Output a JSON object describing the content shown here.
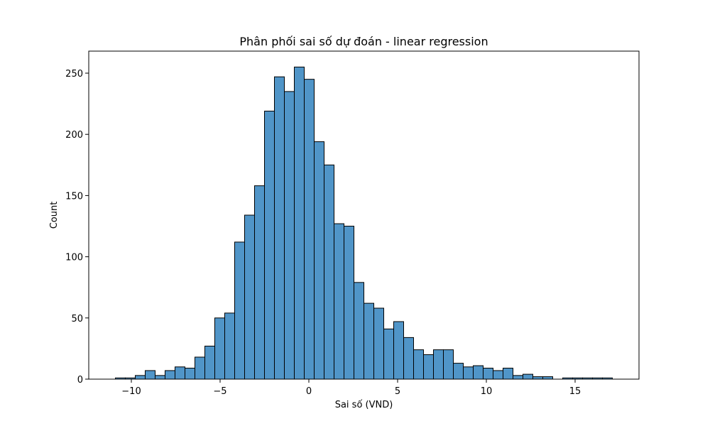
{
  "chart_data": {
    "type": "bar",
    "title": "Phân phối sai số dự đoán - linear regression",
    "xlabel": "Sai số (VND)",
    "ylabel": "Count",
    "xlim": [
      -12.4,
      18.6
    ],
    "ylim": [
      0,
      268
    ],
    "bar_color": "#5095c8",
    "edge_color": "#000000",
    "bin_width": 0.56,
    "bins": [
      {
        "x0": -10.9,
        "count": 1
      },
      {
        "x0": -10.34,
        "count": 1
      },
      {
        "x0": -9.78,
        "count": 3
      },
      {
        "x0": -9.22,
        "count": 7
      },
      {
        "x0": -8.66,
        "count": 3
      },
      {
        "x0": -8.1,
        "count": 7
      },
      {
        "x0": -7.54,
        "count": 10
      },
      {
        "x0": -6.98,
        "count": 9
      },
      {
        "x0": -6.42,
        "count": 18
      },
      {
        "x0": -5.86,
        "count": 27
      },
      {
        "x0": -5.3,
        "count": 50
      },
      {
        "x0": -4.74,
        "count": 54
      },
      {
        "x0": -4.18,
        "count": 112
      },
      {
        "x0": -3.62,
        "count": 134
      },
      {
        "x0": -3.06,
        "count": 158
      },
      {
        "x0": -2.5,
        "count": 219
      },
      {
        "x0": -1.94,
        "count": 247
      },
      {
        "x0": -1.38,
        "count": 235
      },
      {
        "x0": -0.82,
        "count": 255
      },
      {
        "x0": -0.26,
        "count": 245
      },
      {
        "x0": 0.3,
        "count": 194
      },
      {
        "x0": 0.86,
        "count": 175
      },
      {
        "x0": 1.42,
        "count": 127
      },
      {
        "x0": 1.98,
        "count": 125
      },
      {
        "x0": 2.54,
        "count": 79
      },
      {
        "x0": 3.1,
        "count": 62
      },
      {
        "x0": 3.66,
        "count": 58
      },
      {
        "x0": 4.22,
        "count": 41
      },
      {
        "x0": 4.78,
        "count": 47
      },
      {
        "x0": 5.34,
        "count": 34
      },
      {
        "x0": 5.9,
        "count": 24
      },
      {
        "x0": 6.46,
        "count": 20
      },
      {
        "x0": 7.02,
        "count": 24
      },
      {
        "x0": 7.58,
        "count": 24
      },
      {
        "x0": 8.14,
        "count": 13
      },
      {
        "x0": 8.7,
        "count": 10
      },
      {
        "x0": 9.26,
        "count": 11
      },
      {
        "x0": 9.82,
        "count": 9
      },
      {
        "x0": 10.38,
        "count": 7
      },
      {
        "x0": 10.94,
        "count": 9
      },
      {
        "x0": 11.5,
        "count": 3
      },
      {
        "x0": 12.06,
        "count": 4
      },
      {
        "x0": 12.62,
        "count": 2
      },
      {
        "x0": 13.18,
        "count": 2
      },
      {
        "x0": 13.74,
        "count": 0
      },
      {
        "x0": 14.3,
        "count": 1
      },
      {
        "x0": 14.86,
        "count": 1
      },
      {
        "x0": 15.42,
        "count": 1
      },
      {
        "x0": 15.98,
        "count": 1
      },
      {
        "x0": 16.54,
        "count": 1
      }
    ],
    "x_ticks": [
      -10,
      -5,
      0,
      5,
      10,
      15
    ],
    "x_tick_labels": [
      "−10",
      "−5",
      "0",
      "5",
      "10",
      "15"
    ],
    "y_ticks": [
      0,
      50,
      100,
      150,
      200,
      250
    ],
    "y_tick_labels": [
      "0",
      "50",
      "100",
      "150",
      "200",
      "250"
    ],
    "grid": false,
    "legend": "none"
  }
}
